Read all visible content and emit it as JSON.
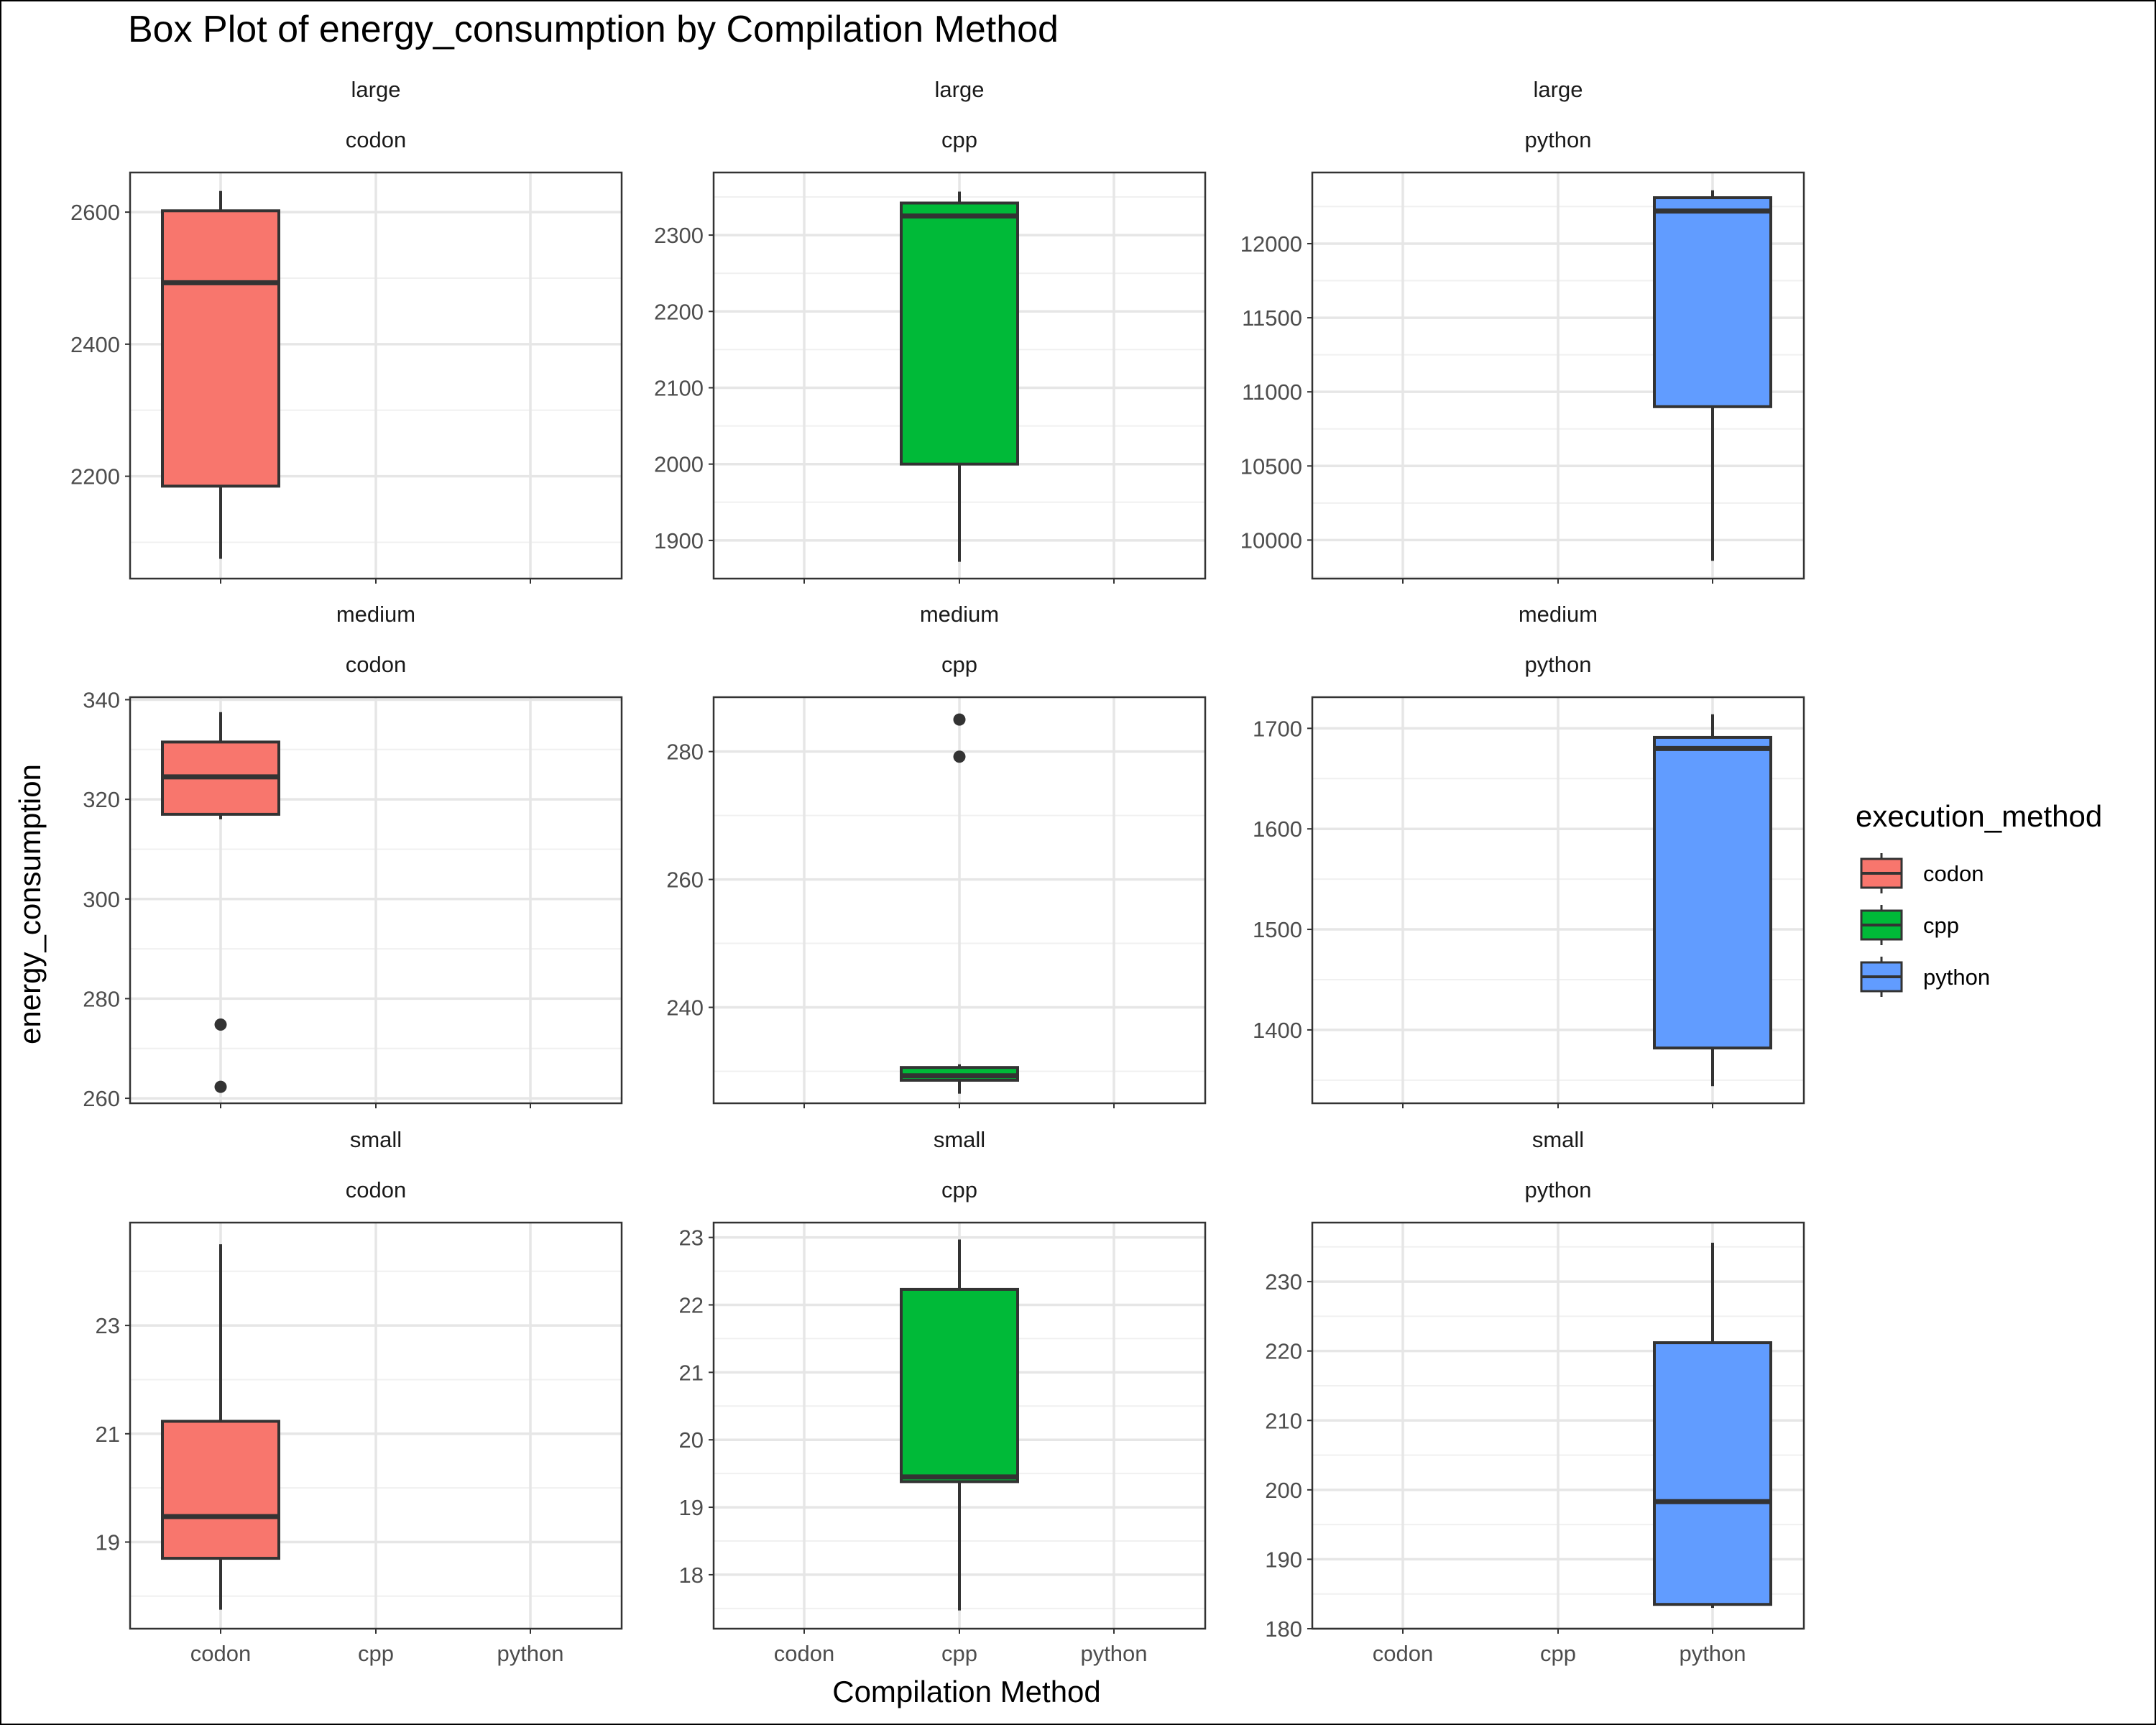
{
  "chart_data": {
    "type": "box",
    "title": "Box Plot of energy_consumption by Compilation Method",
    "xlabel": "Compilation Method",
    "ylabel": "energy_consumption",
    "categories": [
      "codon",
      "cpp",
      "python"
    ],
    "facet_rows": [
      "large",
      "medium",
      "small"
    ],
    "facet_cols": [
      "codon",
      "cpp",
      "python"
    ],
    "legend": {
      "title": "execution_method",
      "position": "right",
      "entries": [
        {
          "label": "codon",
          "color": "#F8766D"
        },
        {
          "label": "cpp",
          "color": "#00BA38"
        },
        {
          "label": "python",
          "color": "#619CFF"
        }
      ]
    },
    "grid": true,
    "panels": [
      {
        "row": "large",
        "col": "codon",
        "category": "codon",
        "color": "#F8766D",
        "ylim": [
          2045,
          2660
        ],
        "yticks": [
          2200,
          2400,
          2600
        ],
        "yminor": [
          2100,
          2300,
          2500
        ],
        "box": {
          "min": 2075,
          "q1": 2185,
          "median": 2493,
          "q3": 2602,
          "max": 2632
        },
        "outliers": []
      },
      {
        "row": "large",
        "col": "cpp",
        "category": "cpp",
        "color": "#00BA38",
        "ylim": [
          1850,
          2382
        ],
        "yticks": [
          1900,
          2000,
          2100,
          2200,
          2300
        ],
        "yminor": [
          1950,
          2050,
          2150,
          2250,
          2350
        ],
        "box": {
          "min": 1872,
          "q1": 2000,
          "median": 2325,
          "q3": 2342,
          "max": 2357
        },
        "outliers": []
      },
      {
        "row": "large",
        "col": "python",
        "category": "python",
        "color": "#619CFF",
        "ylim": [
          9740,
          12480
        ],
        "yticks": [
          10000,
          10500,
          11000,
          11500,
          12000
        ],
        "yminor": [
          9750,
          10250,
          10750,
          11250,
          11750,
          12250
        ],
        "box": {
          "min": 9860,
          "q1": 10900,
          "median": 12220,
          "q3": 12310,
          "max": 12360
        },
        "outliers": []
      },
      {
        "row": "medium",
        "col": "codon",
        "category": "codon",
        "color": "#F8766D",
        "ylim": [
          259,
          340.5
        ],
        "yticks": [
          260,
          280,
          300,
          320,
          340
        ],
        "yminor": [
          270,
          290,
          310,
          330
        ],
        "box": {
          "min": 316,
          "q1": 317,
          "median": 324.5,
          "q3": 331.5,
          "max": 337.5
        },
        "outliers": [
          274.8,
          262.3
        ]
      },
      {
        "row": "medium",
        "col": "cpp",
        "category": "cpp",
        "color": "#00BA38",
        "ylim": [
          225,
          288.5
        ],
        "yticks": [
          240,
          260,
          280
        ],
        "yminor": [
          230,
          250,
          270
        ],
        "box": {
          "min": 226.5,
          "q1": 228.6,
          "median": 229.3,
          "q3": 230.6,
          "max": 231.1
        },
        "outliers": [
          285,
          279.2
        ]
      },
      {
        "row": "medium",
        "col": "python",
        "category": "python",
        "color": "#619CFF",
        "ylim": [
          1327,
          1731
        ],
        "yticks": [
          1400,
          1500,
          1600,
          1700
        ],
        "yminor": [
          1350,
          1450,
          1550,
          1650
        ],
        "box": {
          "min": 1344,
          "q1": 1382,
          "median": 1680,
          "q3": 1691,
          "max": 1714
        },
        "outliers": []
      },
      {
        "row": "small",
        "col": "codon",
        "category": "codon",
        "color": "#F8766D",
        "ylim": [
          17.4,
          24.9
        ],
        "yticks": [
          19,
          21,
          23
        ],
        "yminor": [
          18,
          20,
          22,
          24
        ],
        "box": {
          "min": 17.75,
          "q1": 18.7,
          "median": 19.47,
          "q3": 21.23,
          "max": 24.5
        },
        "outliers": []
      },
      {
        "row": "small",
        "col": "cpp",
        "category": "cpp",
        "color": "#00BA38",
        "ylim": [
          17.2,
          23.22
        ],
        "yticks": [
          18,
          19,
          20,
          21,
          22,
          23
        ],
        "yminor": [
          17.5,
          18.5,
          19.5,
          20.5,
          21.5,
          22.5
        ],
        "box": {
          "min": 17.47,
          "q1": 19.38,
          "median": 19.45,
          "q3": 22.23,
          "max": 22.97
        },
        "outliers": []
      },
      {
        "row": "small",
        "col": "python",
        "category": "python",
        "color": "#619CFF",
        "ylim": [
          180,
          238.5
        ],
        "yticks": [
          180,
          190,
          200,
          210,
          220,
          230
        ],
        "yminor": [
          185,
          195,
          205,
          215,
          225,
          235
        ],
        "box": {
          "min": 183,
          "q1": 183.5,
          "median": 198.3,
          "q3": 221.2,
          "max": 235.6
        },
        "outliers": []
      }
    ]
  }
}
